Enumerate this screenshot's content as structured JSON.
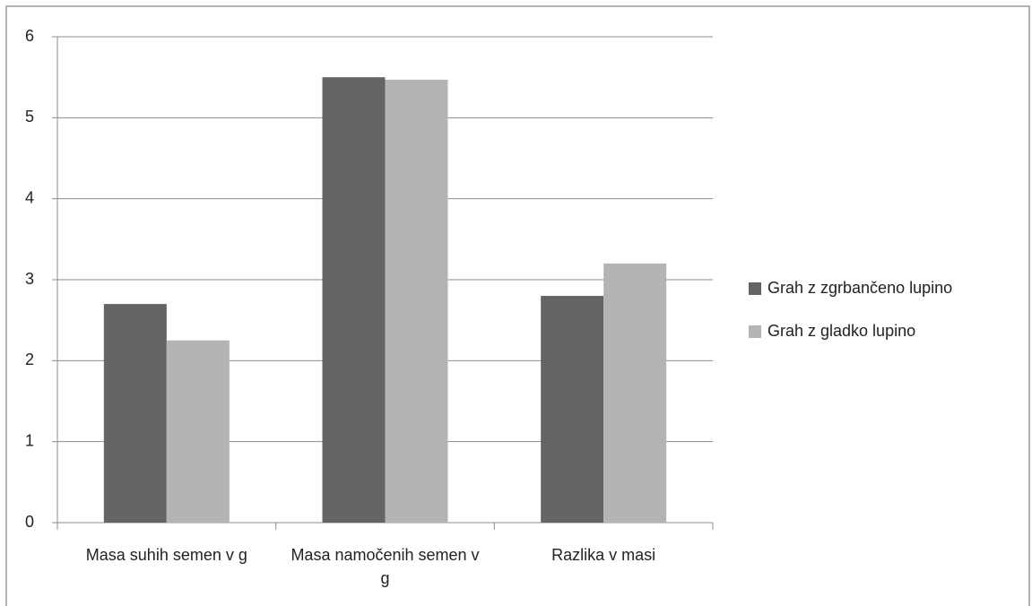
{
  "chart_data": {
    "type": "bar",
    "categories": [
      "Masa suhih semen v g",
      "Masa namočenih semen v g",
      "Razlika v masi"
    ],
    "series": [
      {
        "name": "Grah z zgrbančeno lupino",
        "color": "#646464",
        "values": [
          2.7,
          5.5,
          2.8
        ]
      },
      {
        "name": "Grah z gladko lupino",
        "color": "#b4b4b4",
        "values": [
          2.25,
          5.47,
          3.2
        ]
      }
    ],
    "ylim": [
      0,
      6
    ],
    "yticks": [
      0,
      1,
      2,
      3,
      4,
      5,
      6
    ],
    "grid": true,
    "legend": "right"
  }
}
